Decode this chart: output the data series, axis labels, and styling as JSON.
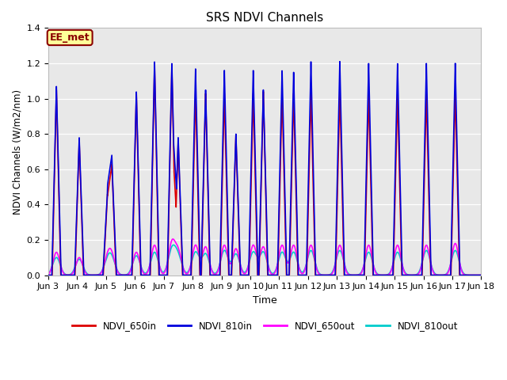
{
  "title": "SRS NDVI Channels",
  "xlabel": "Time",
  "ylabel": "NDVI Channels (W/m2/nm)",
  "ylim": [
    0,
    1.4
  ],
  "xlim": [
    3,
    18
  ],
  "fig_bg_color": "#ffffff",
  "plot_bg_color": "#e8e8e8",
  "series": {
    "NDVI_650in": {
      "color": "#dd0000",
      "lw": 1.2,
      "zorder": 3
    },
    "NDVI_810in": {
      "color": "#0000dd",
      "lw": 1.2,
      "zorder": 4
    },
    "NDVI_650out": {
      "color": "#ff00ff",
      "lw": 1.2,
      "zorder": 2
    },
    "NDVI_810out": {
      "color": "#00cccc",
      "lw": 1.2,
      "zorder": 1
    }
  },
  "annotation_text": "EE_met",
  "annotation_box_color": "#ffff99",
  "annotation_border_color": "#8b0000",
  "xtick_labels": [
    "Jun 3",
    "Jun 4",
    "Jun 5",
    "Jun 6",
    "Jun 7",
    "Jun 8",
    "Jun 9",
    "Jun 10",
    "Jun 11",
    "Jun 12",
    "Jun 13",
    "Jun 14",
    "Jun 15",
    "Jun 16",
    "Jun 17",
    "Jun 18"
  ],
  "xtick_positions": [
    3,
    4,
    5,
    6,
    7,
    8,
    9,
    10,
    11,
    12,
    13,
    14,
    15,
    16,
    17,
    18
  ],
  "ytick_positions": [
    0.0,
    0.2,
    0.4,
    0.6,
    0.8,
    1.0,
    1.2,
    1.4
  ],
  "peak_times": [
    3.28,
    4.07,
    5.05,
    5.2,
    6.05,
    6.68,
    7.28,
    7.5,
    8.1,
    8.45,
    9.1,
    9.5,
    10.1,
    10.45,
    11.1,
    11.5,
    12.1,
    13.1,
    14.1,
    15.1,
    16.1,
    17.1
  ],
  "peak_810in": [
    1.07,
    0.78,
    0.47,
    0.65,
    1.04,
    1.21,
    1.2,
    0.78,
    1.17,
    1.05,
    1.16,
    0.8,
    1.16,
    1.05,
    1.16,
    1.15,
    1.21,
    1.21,
    1.2,
    1.2,
    1.2,
    1.2
  ],
  "peak_650in": [
    1.05,
    0.76,
    0.46,
    0.63,
    1.03,
    1.19,
    1.18,
    0.76,
    1.04,
    1.03,
    1.03,
    0.79,
    1.03,
    1.04,
    1.03,
    1.03,
    1.04,
    1.04,
    1.03,
    1.03,
    1.03,
    1.04
  ],
  "peak_650out": [
    0.13,
    0.1,
    0.09,
    0.1,
    0.13,
    0.17,
    0.18,
    0.13,
    0.17,
    0.16,
    0.17,
    0.15,
    0.17,
    0.16,
    0.17,
    0.17,
    0.17,
    0.17,
    0.17,
    0.17,
    0.17,
    0.18
  ],
  "peak_810out": [
    0.1,
    0.09,
    0.07,
    0.08,
    0.11,
    0.13,
    0.14,
    0.1,
    0.13,
    0.12,
    0.14,
    0.12,
    0.13,
    0.13,
    0.13,
    0.13,
    0.14,
    0.14,
    0.13,
    0.13,
    0.14,
    0.14
  ]
}
